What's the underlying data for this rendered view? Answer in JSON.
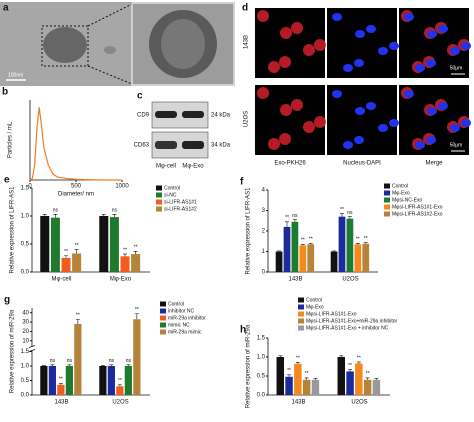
{
  "panels": {
    "a": {
      "label": "a",
      "scale": "100nm"
    },
    "c": {
      "label": "c",
      "rows": [
        "CD9",
        "CD63"
      ],
      "sizes": [
        "24 kDa",
        "34 kDa"
      ],
      "lanes": [
        "Mφ-cell",
        "Mφ-Exo"
      ]
    },
    "d": {
      "label": "d",
      "rows": [
        "143B",
        "U2OS"
      ],
      "columns": [
        "Exo-PKH26",
        "Nucleus-DAPI",
        "Merge"
      ],
      "scale": "50μm"
    }
  },
  "chart_data": [
    {
      "type": "line",
      "label": "b",
      "ylabel": "Particles / mL",
      "xlabel": "Diameter/ nm",
      "color": "#f07d22",
      "x": [
        0,
        25,
        50,
        75,
        100,
        125,
        150,
        200,
        250,
        300,
        400,
        500,
        600,
        800,
        1000
      ],
      "y": [
        0,
        0.02,
        0.2,
        0.7,
        1.0,
        0.75,
        0.45,
        0.2,
        0.08,
        0.04,
        0.02,
        0.01,
        0.005,
        0,
        0
      ],
      "xlim": [
        0,
        1000
      ],
      "ylim": [
        0,
        1.1
      ],
      "xticks": [
        0,
        500,
        1000
      ]
    },
    {
      "type": "bar",
      "label": "e",
      "ylabel": "Relative expression of LIFR-AS1",
      "categories": [
        "Mφ-cell",
        "Mφ-Exo"
      ],
      "ylim": [
        0,
        1.5
      ],
      "yticks": [
        {
          "value": 0,
          "label": "0.0"
        },
        {
          "value": 0.5,
          "label": "0.5"
        },
        {
          "value": 1,
          "label": "1.0"
        },
        {
          "value": 1.5,
          "label": "1.5"
        }
      ],
      "series": [
        {
          "name": "Control",
          "color": "#111111",
          "values": [
            1.0,
            1.0
          ],
          "errors": [
            0.03,
            0.03
          ],
          "significance": [
            null,
            null
          ]
        },
        {
          "name": "si-NC",
          "color": "#1e7a2e",
          "values": [
            0.97,
            0.98
          ],
          "errors": [
            0.06,
            0.05
          ],
          "significance": [
            "ns",
            "ns"
          ]
        },
        {
          "name": "si-LIFR-AS1#1",
          "color": "#f25c1e",
          "values": [
            0.25,
            0.28
          ],
          "errors": [
            0.04,
            0.04
          ],
          "significance": [
            "**",
            "**"
          ]
        },
        {
          "name": "si-LIFR-AS1#2",
          "color": "#b5833a",
          "values": [
            0.33,
            0.32
          ],
          "errors": [
            0.07,
            0.05
          ],
          "significance": [
            "**",
            "**"
          ]
        }
      ]
    },
    {
      "type": "bar",
      "label": "f",
      "ylabel": "Relative expression of  LIFR-AS1",
      "categories": [
        "143B",
        "U2OS"
      ],
      "ylim": [
        0,
        4
      ],
      "yticks": [
        0,
        1,
        2,
        3,
        4
      ],
      "series": [
        {
          "name": "Control",
          "color": "#111111",
          "values": [
            1.0,
            1.0
          ],
          "errors": [
            0.03,
            0.03
          ],
          "significance": [
            null,
            null
          ]
        },
        {
          "name": "Mφ-Exo",
          "color": "#1d2a9c",
          "values": [
            2.2,
            2.7
          ],
          "errors": [
            0.25,
            0.15
          ],
          "significance": [
            "**",
            "**"
          ]
        },
        {
          "name": "Mφsi-NC-Exo",
          "color": "#1e7a2e",
          "values": [
            2.45,
            2.6
          ],
          "errors": [
            0.1,
            0.1
          ],
          "significance": [
            "ns",
            "ns"
          ]
        },
        {
          "name": "Mφsi-LIFR-AS1#1-Exo",
          "color": "#f28a1e",
          "values": [
            1.3,
            1.35
          ],
          "errors": [
            0.05,
            0.05
          ],
          "significance": [
            "**",
            "**"
          ]
        },
        {
          "name": "Mφsi-LIFR-AS1#2-Exo",
          "color": "#b5833a",
          "values": [
            1.35,
            1.38
          ],
          "errors": [
            0.05,
            0.05
          ],
          "significance": [
            "**",
            "**"
          ]
        }
      ]
    },
    {
      "type": "bar",
      "label": "g",
      "ylabel": "Relative expression of miR-29a",
      "categories": [
        "143B",
        "U2OS"
      ],
      "ylim": [
        0,
        1.5
      ],
      "yticks": [
        {
          "value": 0,
          "label": "0.0"
        },
        {
          "value": 0.5,
          "label": "0.5"
        },
        {
          "value": 1,
          "label": "1.0"
        },
        {
          "value": 1.5,
          "label": "1.5"
        }
      ],
      "y_break": {
        "ylim": [
          5,
          45
        ],
        "yticks": [
          10,
          20,
          30,
          40
        ]
      },
      "series": [
        {
          "name": "Control",
          "color": "#111111",
          "values": [
            1.0,
            1.0
          ],
          "errors": [
            0.02,
            0.02
          ],
          "significance": [
            null,
            null
          ]
        },
        {
          "name": "inhibitor NC",
          "color": "#1d2a9c",
          "values": [
            1.0,
            1.0
          ],
          "errors": [
            0.04,
            0.04
          ],
          "significance": [
            "ns",
            "ns"
          ]
        },
        {
          "name": "miR-29a inhibitor",
          "color": "#f25c1e",
          "values": [
            0.35,
            0.3
          ],
          "errors": [
            0.05,
            0.05
          ],
          "significance": [
            "**",
            "**"
          ]
        },
        {
          "name": "mimic NC",
          "color": "#1e7a2e",
          "values": [
            1.0,
            1.0
          ],
          "errors": [
            0.04,
            0.04
          ],
          "significance": [
            "ns",
            "ns"
          ]
        },
        {
          "name": "miR-29a mimic",
          "color": "#b5833a",
          "values": [
            28,
            33
          ],
          "errors": [
            5,
            6
          ],
          "significance": [
            "**",
            "**"
          ]
        }
      ]
    },
    {
      "type": "bar",
      "label": "h",
      "ylabel": "Relative expression of  miR-29a",
      "categories": [
        "143B",
        "U2OS"
      ],
      "ylim": [
        0,
        1.5
      ],
      "yticks": [
        {
          "value": 0,
          "label": "0.0"
        },
        {
          "value": 0.5,
          "label": "0.5"
        },
        {
          "value": 1,
          "label": "1.0"
        },
        {
          "value": 1.5,
          "label": "1.5"
        }
      ],
      "series": [
        {
          "name": "Control",
          "color": "#111111",
          "values": [
            1.0,
            1.0
          ],
          "errors": [
            0.03,
            0.03
          ],
          "significance": [
            null,
            null
          ]
        },
        {
          "name": "Mφ-Exo",
          "color": "#1d2a9c",
          "values": [
            0.48,
            0.62
          ],
          "errors": [
            0.05,
            0.05
          ],
          "significance": [
            "**",
            "**"
          ]
        },
        {
          "name": "Mφsi-LIFR-AS1#1-Exo",
          "color": "#f28a1e",
          "values": [
            0.82,
            0.83
          ],
          "errors": [
            0.04,
            0.04
          ],
          "significance": [
            "**",
            "**"
          ]
        },
        {
          "name": "Mφsi-LIFR-AS1#1-Exo+miR-29a inhibitor",
          "color": "#b5833a",
          "values": [
            0.4,
            0.4
          ],
          "errors": [
            0.05,
            0.05
          ],
          "significance": [
            "**",
            "**"
          ]
        },
        {
          "name": "Mφsi-LIFR-AS1#1-Exo + inhibitor NC",
          "color": "#999999",
          "values": [
            0.4,
            0.4
          ],
          "errors": [
            0.04,
            0.04
          ],
          "significance": [
            null,
            null
          ]
        }
      ]
    }
  ]
}
